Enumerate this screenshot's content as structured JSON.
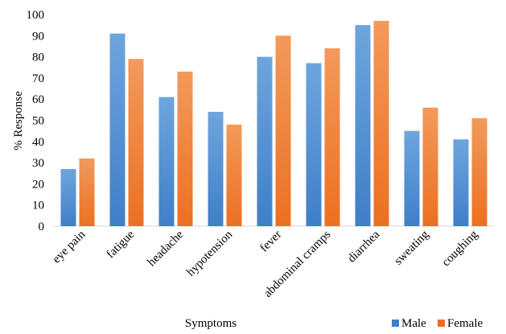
{
  "chart_data": {
    "type": "bar",
    "title": "",
    "xlabel": "Symptoms",
    "ylabel": "% Response",
    "ylim": [
      0,
      100
    ],
    "yticks": [
      0,
      10,
      20,
      30,
      40,
      50,
      60,
      70,
      80,
      90,
      100
    ],
    "grid": false,
    "legend_position": "bottom-right",
    "categories": [
      "eye pain",
      "fatigue",
      "headache",
      "hypotension",
      "fever",
      "abdominal cramps",
      "diarrhea",
      "sweating",
      "coughing"
    ],
    "series": [
      {
        "name": "Male",
        "color_top": "#6fa5dd",
        "color_bottom": "#3f7fc8",
        "values": [
          27,
          91,
          61,
          54,
          80,
          77,
          95,
          45,
          41
        ]
      },
      {
        "name": "Female",
        "color_top": "#f29a5c",
        "color_bottom": "#ec7021",
        "values": [
          32,
          79,
          73,
          48,
          90,
          84,
          97,
          56,
          51
        ]
      }
    ]
  }
}
